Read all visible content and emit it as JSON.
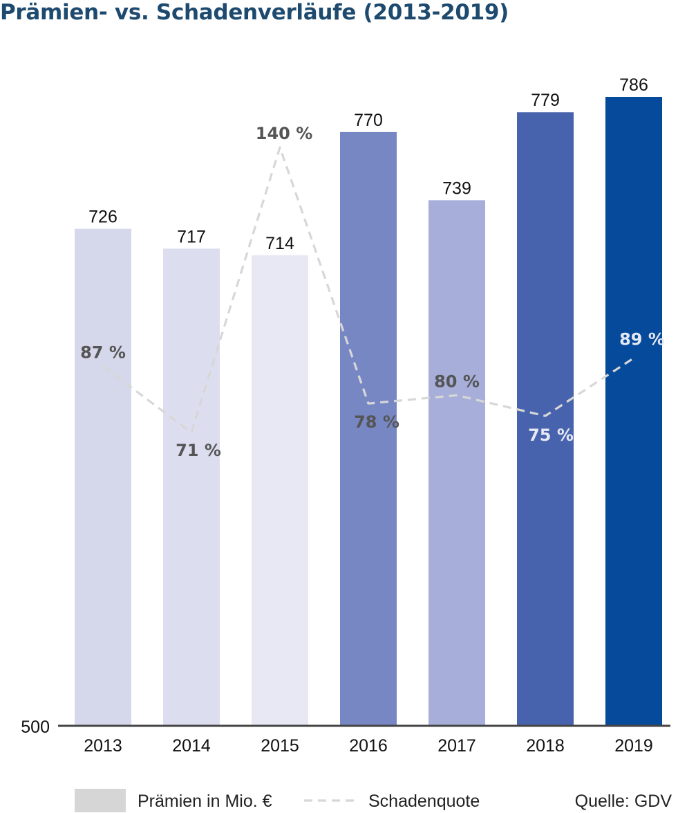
{
  "title": "Prämien- vs. Schadenverläufe (2013-2019)",
  "chart_data": {
    "type": "bar",
    "categories": [
      "2013",
      "2014",
      "2015",
      "2016",
      "2017",
      "2018",
      "2019"
    ],
    "series": [
      {
        "name": "Prämien in Mio. €",
        "type": "bar",
        "axis": "left",
        "values": [
          726,
          717,
          714,
          770,
          739,
          779,
          786
        ],
        "labels": [
          "726",
          "717",
          "714",
          "770",
          "739",
          "779",
          "786"
        ],
        "colors": [
          "#d5d7eb",
          "#dcdeef",
          "#e8e8f5",
          "#7787c3",
          "#a6aed9",
          "#4863ad",
          "#054a9b"
        ]
      },
      {
        "name": "Schadenquote",
        "type": "line",
        "style": "dashed",
        "axis": "right",
        "color": "#d7d7d7",
        "unit": "%",
        "values": [
          87,
          71,
          140,
          78,
          80,
          75,
          89
        ],
        "labels": [
          "87 %",
          "71 %",
          "140 %",
          "78 %",
          "80 %",
          "75 %",
          "89 %"
        ],
        "label_colors": [
          "#555555",
          "#555555",
          "#555555",
          "#555555",
          "#555555",
          "#e6e8f4",
          "#e6e8f4"
        ]
      }
    ],
    "ylim": [
      500,
      786
    ],
    "y_tick_labels": [
      "500"
    ],
    "y2lim": [
      0,
      140
    ],
    "grid": false,
    "legend": {
      "placement": "bottom",
      "items": [
        {
          "label": "Prämien in Mio. €",
          "marker": "box",
          "color": "#d6d6d6"
        },
        {
          "label": "Schadenquote",
          "marker": "dashed-line",
          "color": "#d7d7d7"
        }
      ]
    },
    "source": "Quelle: GDV",
    "axis_color": "#444444"
  }
}
